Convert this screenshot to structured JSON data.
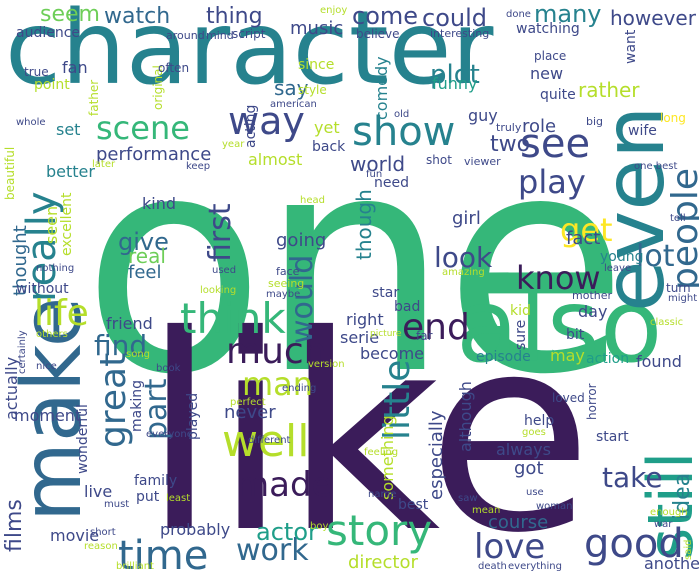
{
  "wordcloud": {
    "palette": {
      "dark_purple": "#3b1c5a",
      "indigo": "#3e4989",
      "blue": "#31688e",
      "teal": "#26828e",
      "sea_green": "#1f9e89",
      "green": "#35b779",
      "lime": "#6ece58",
      "yellow_green": "#b5de2b",
      "yellow": "#fde725"
    },
    "words": [
      {
        "text": "character",
        "color": "#26828e"
      },
      {
        "text": "one",
        "color": "#35b779"
      },
      {
        "text": "like",
        "color": "#3b1c5a"
      },
      {
        "text": "also",
        "color": "#35b779"
      },
      {
        "text": "even",
        "color": "#26828e"
      },
      {
        "text": "make",
        "color": "#31688e"
      },
      {
        "text": "still",
        "color": "#1f9e89"
      },
      {
        "text": "story",
        "color": "#35b779"
      },
      {
        "text": "good",
        "color": "#3e4989"
      },
      {
        "text": "time",
        "color": "#31688e"
      },
      {
        "text": "well",
        "color": "#b5de2b"
      },
      {
        "text": "much",
        "color": "#3b1c5a"
      },
      {
        "text": "made",
        "color": "#3b1c5a"
      },
      {
        "text": "think",
        "color": "#35b779"
      },
      {
        "text": "great",
        "color": "#31688e"
      },
      {
        "text": "people",
        "color": "#31688e"
      },
      {
        "text": "really",
        "color": "#26828e"
      },
      {
        "text": "life",
        "color": "#b5de2b"
      },
      {
        "text": "way",
        "color": "#3e4989"
      },
      {
        "text": "show",
        "color": "#26828e"
      },
      {
        "text": "scene",
        "color": "#35b779"
      },
      {
        "text": "see",
        "color": "#3e4989"
      },
      {
        "text": "little",
        "color": "#26828e"
      },
      {
        "text": "love",
        "color": "#3e4989"
      },
      {
        "text": "work",
        "color": "#31688e"
      },
      {
        "text": "end",
        "color": "#3b1c5a"
      },
      {
        "text": "man",
        "color": "#b5de2b"
      },
      {
        "text": "play",
        "color": "#3e4989"
      },
      {
        "text": "get",
        "color": "#fde725"
      },
      {
        "text": "know",
        "color": "#3b1c5a"
      },
      {
        "text": "first",
        "color": "#3e4989"
      },
      {
        "text": "would",
        "color": "#31688e"
      },
      {
        "text": "find",
        "color": "#31688e"
      },
      {
        "text": "part",
        "color": "#31688e"
      },
      {
        "text": "take",
        "color": "#3e4989"
      },
      {
        "text": "lot",
        "color": "#31688e"
      },
      {
        "text": "look",
        "color": "#3e4989"
      },
      {
        "text": "watch",
        "color": "#31688e"
      },
      {
        "text": "thing",
        "color": "#3e4989"
      },
      {
        "text": "come",
        "color": "#3e4989"
      },
      {
        "text": "could",
        "color": "#3e4989"
      },
      {
        "text": "many",
        "color": "#26828e"
      },
      {
        "text": "plot",
        "color": "#26828e"
      },
      {
        "text": "seem",
        "color": "#6ece58"
      },
      {
        "text": "however",
        "color": "#3e4989"
      },
      {
        "text": "music",
        "color": "#3e4989"
      },
      {
        "text": "say",
        "color": "#31688e"
      },
      {
        "text": "give",
        "color": "#31688e"
      },
      {
        "text": "real",
        "color": "#6ece58"
      },
      {
        "text": "feel",
        "color": "#31688e"
      },
      {
        "text": "actor",
        "color": "#1f9e89"
      },
      {
        "text": "two",
        "color": "#3e4989"
      },
      {
        "text": "films",
        "color": "#3e4989"
      },
      {
        "text": "idea",
        "color": "#26828e"
      },
      {
        "text": "director",
        "color": "#b5de2b"
      },
      {
        "text": "course",
        "color": "#31688e"
      },
      {
        "text": "thought",
        "color": "#31688e"
      },
      {
        "text": "funny",
        "color": "#1f9e89"
      },
      {
        "text": "comedy",
        "color": "#26828e"
      },
      {
        "text": "role",
        "color": "#3e4989"
      },
      {
        "text": "world",
        "color": "#3e4989"
      },
      {
        "text": "performance",
        "color": "#3e4989"
      },
      {
        "text": "going",
        "color": "#3e4989"
      },
      {
        "text": "kind",
        "color": "#3e4989"
      },
      {
        "text": "though",
        "color": "#26828e"
      },
      {
        "text": "fact",
        "color": "#3e4989"
      },
      {
        "text": "girl",
        "color": "#3e4989"
      },
      {
        "text": "rather",
        "color": "#b5de2b"
      },
      {
        "text": "quite",
        "color": "#3e4989"
      },
      {
        "text": "new",
        "color": "#3e4989"
      },
      {
        "text": "guy",
        "color": "#3e4989"
      },
      {
        "text": "fan",
        "color": "#3e4989"
      },
      {
        "text": "set",
        "color": "#26828e"
      },
      {
        "text": "yet",
        "color": "#b5de2b"
      },
      {
        "text": "back",
        "color": "#3e4989"
      },
      {
        "text": "almost",
        "color": "#b5de2b"
      },
      {
        "text": "young",
        "color": "#26828e"
      },
      {
        "text": "star",
        "color": "#3e4989"
      },
      {
        "text": "right",
        "color": "#3e4989"
      },
      {
        "text": "friend",
        "color": "#3e4989"
      },
      {
        "text": "serie",
        "color": "#3e4989"
      },
      {
        "text": "become",
        "color": "#3e4989"
      },
      {
        "text": "never",
        "color": "#3e4989"
      },
      {
        "text": "especially",
        "color": "#3e4989"
      },
      {
        "text": "something",
        "color": "#b5de2b"
      },
      {
        "text": "although",
        "color": "#3e4989"
      },
      {
        "text": "episode",
        "color": "#26828e"
      },
      {
        "text": "may",
        "color": "#b5de2b"
      },
      {
        "text": "action",
        "color": "#1f9e89"
      },
      {
        "text": "found",
        "color": "#3e4989"
      },
      {
        "text": "kid",
        "color": "#b5de2b"
      },
      {
        "text": "day",
        "color": "#3e4989"
      },
      {
        "text": "bit",
        "color": "#3e4989"
      },
      {
        "text": "sure",
        "color": "#3e4989"
      },
      {
        "text": "moment",
        "color": "#3e4989"
      },
      {
        "text": "making",
        "color": "#3e4989"
      },
      {
        "text": "played",
        "color": "#3e4989"
      },
      {
        "text": "family",
        "color": "#3e4989"
      },
      {
        "text": "live",
        "color": "#3e4989"
      },
      {
        "text": "put",
        "color": "#3e4989"
      },
      {
        "text": "probably",
        "color": "#3e4989"
      },
      {
        "text": "movie",
        "color": "#3e4989"
      },
      {
        "text": "always",
        "color": "#3e4989"
      },
      {
        "text": "got",
        "color": "#3e4989"
      },
      {
        "text": "help",
        "color": "#3e4989"
      },
      {
        "text": "start",
        "color": "#3e4989"
      },
      {
        "text": "best",
        "color": "#3e4989"
      },
      {
        "text": "another",
        "color": "#3e4989"
      },
      {
        "text": "actually",
        "color": "#3e4989"
      },
      {
        "text": "wonderful",
        "color": "#3e4989"
      },
      {
        "text": "better",
        "color": "#26828e"
      },
      {
        "text": "excellent",
        "color": "#b5de2b"
      },
      {
        "text": "seen",
        "color": "#b5de2b"
      },
      {
        "text": "without",
        "color": "#3e4989"
      },
      {
        "text": "need",
        "color": "#3e4989"
      },
      {
        "text": "beautiful",
        "color": "#b5de2b"
      },
      {
        "text": "acting",
        "color": "#3e4989"
      },
      {
        "text": "audience",
        "color": "#3e4989"
      },
      {
        "text": "point",
        "color": "#b5de2b"
      },
      {
        "text": "watching",
        "color": "#3e4989"
      },
      {
        "text": "believe",
        "color": "#3e4989"
      },
      {
        "text": "script",
        "color": "#3e4989"
      },
      {
        "text": "since",
        "color": "#b5de2b"
      },
      {
        "text": "want",
        "color": "#3e4989"
      },
      {
        "text": "place",
        "color": "#3e4989"
      },
      {
        "text": "original",
        "color": "#b5de2b"
      },
      {
        "text": "father",
        "color": "#b5de2b"
      },
      {
        "text": "often",
        "color": "#3e4989"
      },
      {
        "text": "true",
        "color": "#3e4989"
      },
      {
        "text": "around",
        "color": "#3e4989"
      },
      {
        "text": "mind",
        "color": "#3e4989"
      },
      {
        "text": "enjoy",
        "color": "#b5de2b"
      },
      {
        "text": "done",
        "color": "#3e4989"
      },
      {
        "text": "interesting",
        "color": "#3e4989"
      },
      {
        "text": "style",
        "color": "#b5de2b"
      },
      {
        "text": "american",
        "color": "#3e4989"
      },
      {
        "text": "old",
        "color": "#3e4989"
      },
      {
        "text": "truly",
        "color": "#3e4989"
      },
      {
        "text": "big",
        "color": "#3e4989"
      },
      {
        "text": "wife",
        "color": "#3e4989"
      },
      {
        "text": "long",
        "color": "#fde725"
      },
      {
        "text": "whole",
        "color": "#3e4989"
      },
      {
        "text": "year",
        "color": "#b5de2b"
      },
      {
        "text": "keep",
        "color": "#3e4989"
      },
      {
        "text": "later",
        "color": "#b5de2b"
      },
      {
        "text": "fun",
        "color": "#3e4989"
      },
      {
        "text": "shot",
        "color": "#3e4989"
      },
      {
        "text": "viewer",
        "color": "#3e4989"
      },
      {
        "text": "one best",
        "color": "#3e4989"
      },
      {
        "text": "head",
        "color": "#b5de2b"
      },
      {
        "text": "tell",
        "color": "#3e4989"
      },
      {
        "text": "face",
        "color": "#3e4989"
      },
      {
        "text": "seeing",
        "color": "#b5de2b"
      },
      {
        "text": "used",
        "color": "#3e4989"
      },
      {
        "text": "amazing",
        "color": "#b5de2b"
      },
      {
        "text": "leave",
        "color": "#3e4989"
      },
      {
        "text": "nothing",
        "color": "#3e4989"
      },
      {
        "text": "looking",
        "color": "#b5de2b"
      },
      {
        "text": "maybe",
        "color": "#3e4989"
      },
      {
        "text": "mother",
        "color": "#3e4989"
      },
      {
        "text": "turn",
        "color": "#3e4989"
      },
      {
        "text": "might",
        "color": "#3e4989"
      },
      {
        "text": "classic",
        "color": "#b5de2b"
      },
      {
        "text": "others",
        "color": "#b5de2b"
      },
      {
        "text": "picture",
        "color": "#b5de2b"
      },
      {
        "text": "bad",
        "color": "#3e4989"
      },
      {
        "text": "far",
        "color": "#3e4989"
      },
      {
        "text": "horror",
        "color": "#3e4989"
      },
      {
        "text": "certainly",
        "color": "#3e4989"
      },
      {
        "text": "song",
        "color": "#b5de2b"
      },
      {
        "text": "nice",
        "color": "#3e4989"
      },
      {
        "text": "book",
        "color": "#3e4989"
      },
      {
        "text": "version",
        "color": "#b5de2b"
      },
      {
        "text": "perfect",
        "color": "#b5de2b"
      },
      {
        "text": "ending",
        "color": "#3e4989"
      },
      {
        "text": "loved",
        "color": "#3e4989"
      },
      {
        "text": "goes",
        "color": "#b5de2b"
      },
      {
        "text": "everyone",
        "color": "#3e4989"
      },
      {
        "text": "different",
        "color": "#3e4989"
      },
      {
        "text": "feeling",
        "color": "#b5de2b"
      },
      {
        "text": "least",
        "color": "#b5de2b"
      },
      {
        "text": "name",
        "color": "#3e4989"
      },
      {
        "text": "saw",
        "color": "#3e4989"
      },
      {
        "text": "use",
        "color": "#3e4989"
      },
      {
        "text": "mean",
        "color": "#b5de2b"
      },
      {
        "text": "woman",
        "color": "#3e4989"
      },
      {
        "text": "enough",
        "color": "#b5de2b"
      },
      {
        "text": "war",
        "color": "#3e4989"
      },
      {
        "text": "must",
        "color": "#3e4989"
      },
      {
        "text": "short",
        "color": "#3e4989"
      },
      {
        "text": "reason",
        "color": "#b5de2b"
      },
      {
        "text": "boy",
        "color": "#b5de2b"
      },
      {
        "text": "brilliant",
        "color": "#b5de2b"
      },
      {
        "text": "death",
        "color": "#3e4989"
      },
      {
        "text": "everything",
        "color": "#3e4989"
      },
      {
        "text": "said",
        "color": "#b5de2b"
      }
    ]
  }
}
